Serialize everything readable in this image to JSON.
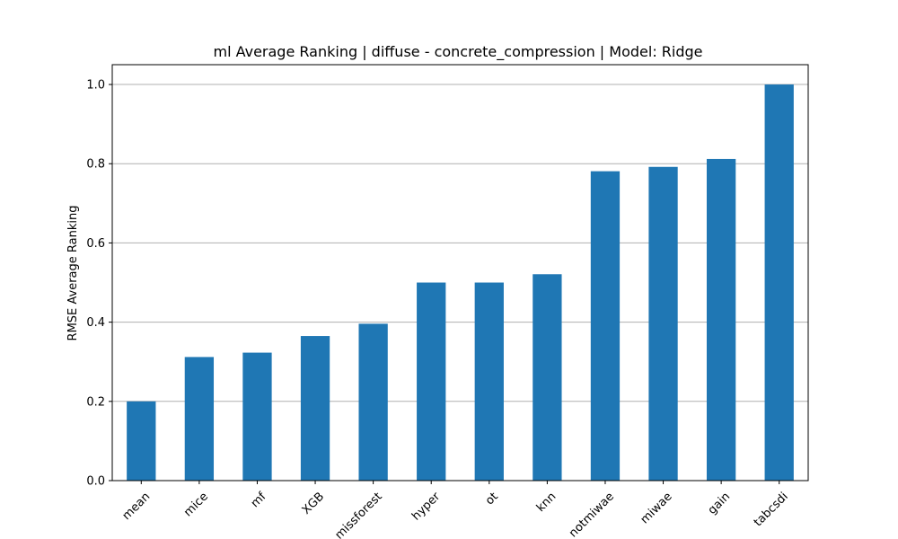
{
  "chart_data": {
    "type": "bar",
    "title": "ml Average Ranking | diffuse - concrete_compression | Model: Ridge",
    "xlabel": "",
    "ylabel": "RMSE Average Ranking",
    "categories": [
      "mean",
      "mice",
      "mf",
      "XGB",
      "missforest",
      "hyper",
      "ot",
      "knn",
      "notmiwae",
      "miwae",
      "gain",
      "tabcsdi"
    ],
    "values": [
      0.2,
      0.312,
      0.323,
      0.365,
      0.396,
      0.5,
      0.5,
      0.521,
      0.781,
      0.792,
      0.812,
      1.0
    ],
    "ylim": [
      0,
      1.05
    ],
    "yticks": [
      "0.0",
      "0.2",
      "0.4",
      "0.6",
      "0.8",
      "1.0"
    ],
    "grid": "y",
    "bar_color": "#1f77b4",
    "grid_color": "#b0b0b0"
  }
}
